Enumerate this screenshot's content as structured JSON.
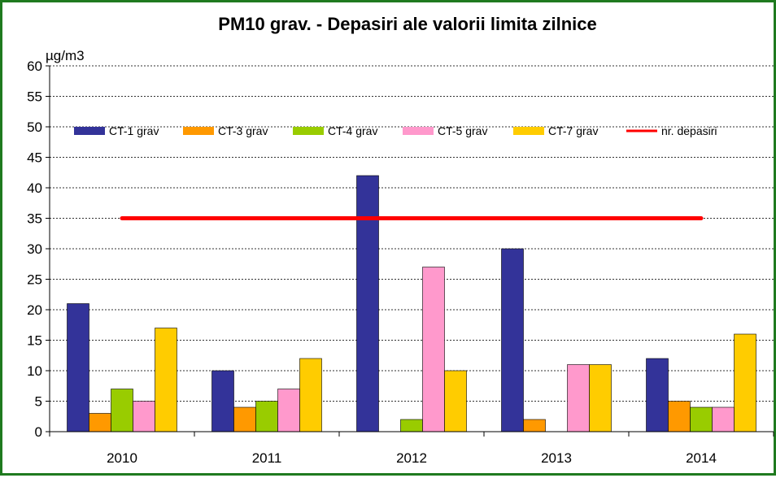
{
  "chart_data": {
    "type": "bar",
    "title": "PM10 grav. - Depasiri ale valorii limita zilnice",
    "ylabel": "µg/m3",
    "xlabel": "",
    "ylim": [
      0,
      60
    ],
    "yticks": [
      0,
      5,
      10,
      15,
      20,
      25,
      30,
      35,
      40,
      45,
      50,
      55,
      60
    ],
    "grid": true,
    "legend_position": "top",
    "categories": [
      "2010",
      "2011",
      "2012",
      "2013",
      "2014"
    ],
    "series": [
      {
        "name": "CT-1 grav",
        "color": "#333399",
        "values": [
          21,
          10,
          42,
          30,
          12
        ]
      },
      {
        "name": "CT-3 grav",
        "color": "#ff9900",
        "values": [
          3,
          4,
          0,
          2,
          5
        ]
      },
      {
        "name": "CT-4 grav",
        "color": "#99cc00",
        "values": [
          7,
          5,
          2,
          0,
          4
        ]
      },
      {
        "name": "CT-5 grav",
        "color": "#ff99cc",
        "values": [
          5,
          7,
          27,
          11,
          4
        ]
      },
      {
        "name": "CT-7 grav",
        "color": "#ffcc00",
        "values": [
          17,
          12,
          10,
          11,
          16
        ]
      }
    ],
    "reference_line": {
      "name": "nr. depasiri",
      "color": "#ff0000",
      "value": 35
    }
  }
}
